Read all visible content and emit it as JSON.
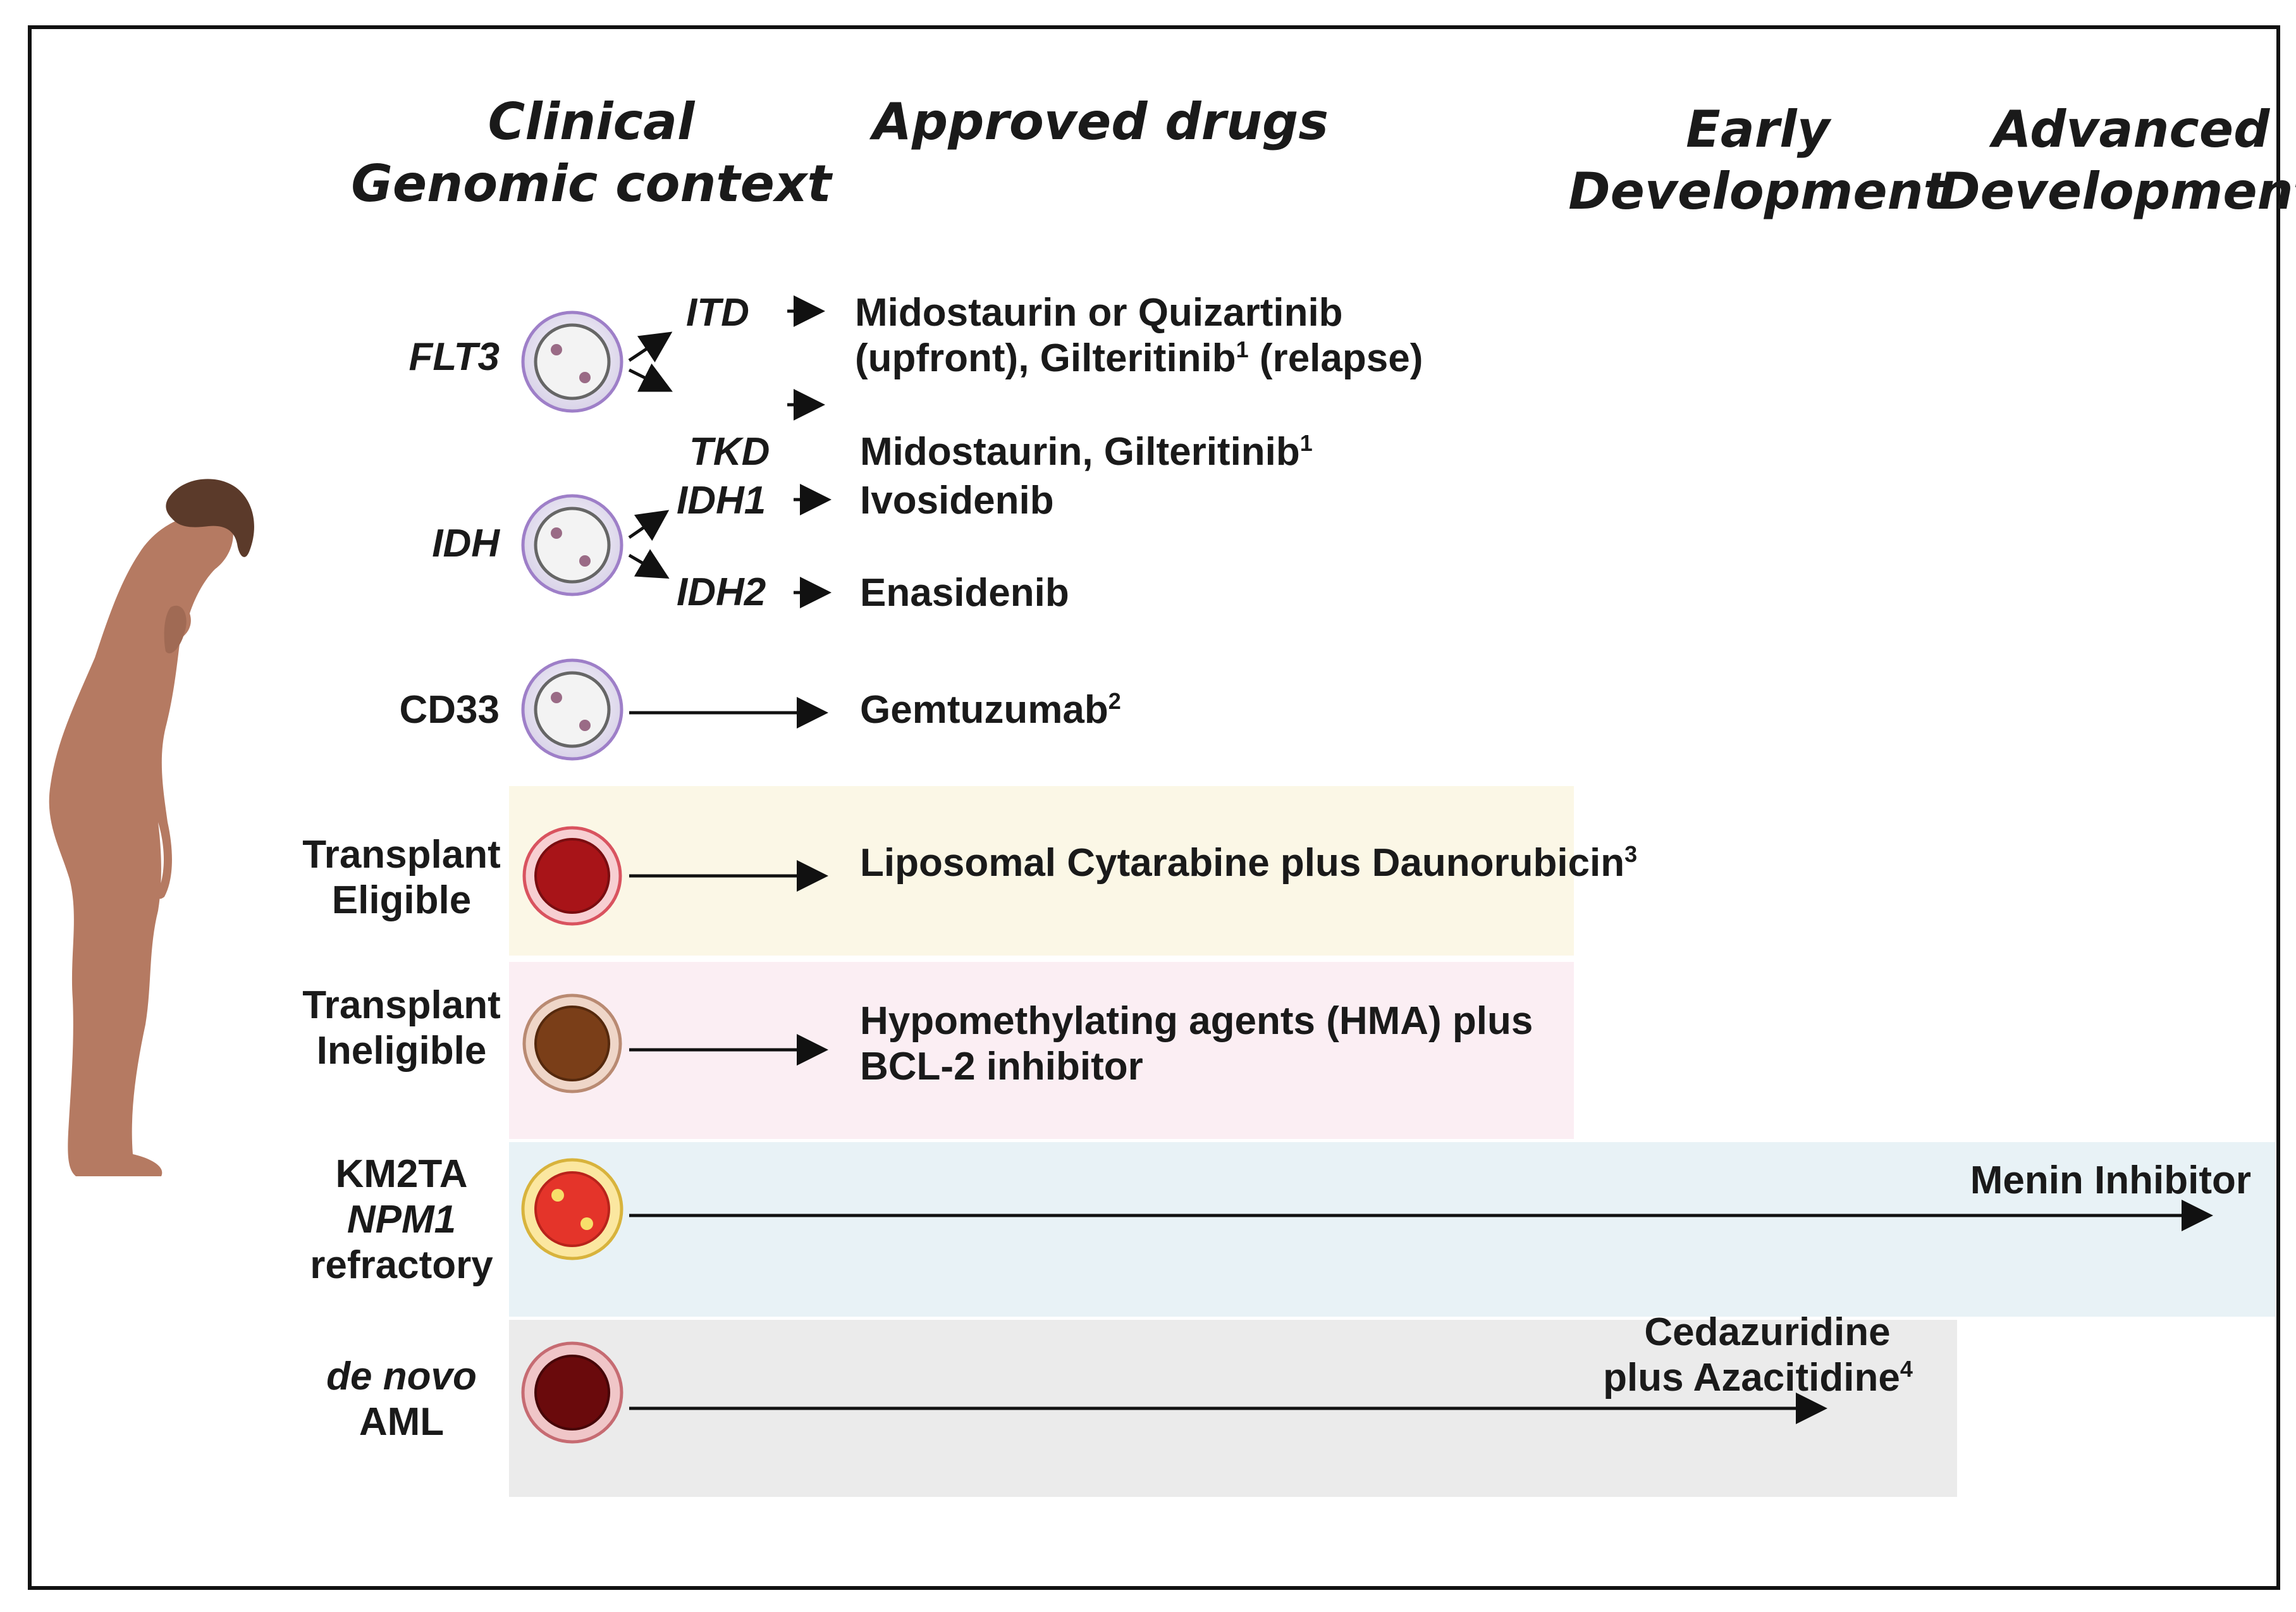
{
  "headers": {
    "clinical_line1": "Clinical",
    "clinical_line2": "Genomic context",
    "approved": "Approved drugs",
    "early_line1": "Early",
    "early_line2": "Development",
    "advanced_line1": "Advanced",
    "advanced_line2": "Development"
  },
  "rows": {
    "flt3": {
      "label": "FLT3",
      "itd": "ITD",
      "tkd": "TKD",
      "itd_drug_line1": "Midostaurin or Quizartinib",
      "itd_drug_line2a": "(upfront), Gilteritinib",
      "itd_drug_line2_sup": "1",
      "itd_drug_line2b": " (relapse)",
      "tkd_drug": "Midostaurin, Gilteritinib",
      "tkd_drug_sup": "1"
    },
    "idh": {
      "label": "IDH",
      "idh1": "IDH1",
      "idh2": "IDH2",
      "idh1_drug": "Ivosidenib",
      "idh2_drug": "Enasidenib"
    },
    "cd33": {
      "label": "CD33",
      "drug": "Gemtuzumab",
      "drug_sup": "2"
    },
    "transplant_eligible": {
      "label_line1": "Transplant",
      "label_line2": "Eligible",
      "drug": "Liposomal Cytarabine plus Daunorubicin",
      "drug_sup": "3"
    },
    "transplant_ineligible": {
      "label_line1": "Transplant",
      "label_line2": "Ineligible",
      "drug_line1": "Hypomethylating agents (HMA) plus",
      "drug_line2": "BCL-2 inhibitor"
    },
    "km2ta": {
      "label_line1": "KM2TA",
      "label_line2": "NPM1",
      "label_line3": "refractory",
      "drug": "Menin Inhibitor"
    },
    "de_novo": {
      "label_line1": "de novo",
      "label_line2": "AML",
      "drug_line1": "Cedazuridine",
      "drug_line2": "plus Azacitidine",
      "drug_sup": "4"
    }
  },
  "colors": {
    "band_eligible": "#fbf7e6",
    "band_ineligible": "#fbeef3",
    "band_km2ta": "#e8f2f6",
    "band_denovo": "#ebebeb",
    "frame": "#111111",
    "skin": "#b57a62",
    "hair": "#5b3a2a"
  }
}
